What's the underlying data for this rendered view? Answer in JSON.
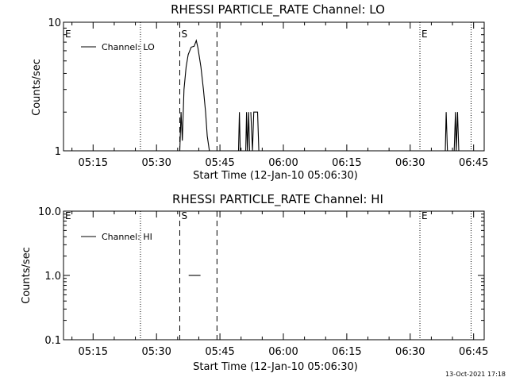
{
  "footer": {
    "timestamp": "13-Oct-2021 17:18"
  },
  "chart_data": [
    {
      "type": "line",
      "title": "RHESSI PARTICLE_RATE Channel: LO",
      "xlabel": "Start Time (12-Jan-10 05:06:30)",
      "ylabel": "Counts/sec",
      "yscale": "log",
      "ylim": [
        1,
        10
      ],
      "yticks": [
        1,
        10
      ],
      "ytick_labels": [
        "1",
        "10"
      ],
      "xlim_min": [
        6.5,
        106
      ],
      "xticks_min": [
        13.5,
        28.5,
        43.5,
        58.5,
        73.5,
        88.5,
        103.5
      ],
      "xtick_labels": [
        "05:15",
        "05:30",
        "05:45",
        "06:00",
        "06:15",
        "06:30",
        "06:45"
      ],
      "legend": {
        "label": "Channel: LO",
        "position": "top-left"
      },
      "markers": [
        {
          "label": "E",
          "x_min": 6.5,
          "style": "text"
        },
        {
          "label": "",
          "x_min": 24.7,
          "style": "dotted"
        },
        {
          "label": "S",
          "x_min": 34.0,
          "style": "dashed"
        },
        {
          "label": "",
          "x_min": 42.8,
          "style": "dashed"
        },
        {
          "label": "E",
          "x_min": 90.8,
          "style": "dotted"
        },
        {
          "label": "",
          "x_min": 102.9,
          "style": "dotted"
        }
      ],
      "series": [
        {
          "name": "Channel: LO",
          "segments": [
            [
              [
                34.0,
                1
              ],
              [
                34.3,
                2
              ],
              [
                34.6,
                1.2
              ],
              [
                35.0,
                3
              ],
              [
                35.5,
                4.5
              ],
              [
                36.0,
                5.6
              ],
              [
                36.7,
                6.4
              ],
              [
                37.4,
                6.5
              ],
              [
                37.9,
                7.2
              ],
              [
                38.3,
                6.3
              ],
              [
                39.0,
                4.5
              ],
              [
                39.6,
                3.0
              ],
              [
                40.1,
                2.0
              ],
              [
                40.5,
                1.3
              ],
              [
                41.0,
                1.0
              ]
            ],
            [
              [
                47.9,
                1
              ],
              [
                48.1,
                2
              ],
              [
                48.3,
                1
              ]
            ],
            [
              [
                49.6,
                1
              ],
              [
                49.8,
                2
              ],
              [
                50.0,
                1
              ],
              [
                50.3,
                2
              ],
              [
                50.5,
                1
              ]
            ],
            [
              [
                50.8,
                2
              ],
              [
                51.2,
                1
              ],
              [
                51.5,
                2
              ],
              [
                52.0,
                2
              ],
              [
                52.4,
                2
              ],
              [
                52.7,
                1
              ]
            ],
            [
              [
                96.8,
                1
              ],
              [
                97.0,
                2
              ],
              [
                97.3,
                1
              ]
            ],
            [
              [
                98.9,
                1
              ],
              [
                99.2,
                2
              ],
              [
                99.4,
                1
              ],
              [
                99.7,
                2
              ],
              [
                100.0,
                1
              ]
            ]
          ]
        }
      ]
    },
    {
      "type": "line",
      "title": "RHESSI PARTICLE_RATE Channel: HI",
      "xlabel": "Start Time (12-Jan-10 05:06:30)",
      "ylabel": "Counts/sec",
      "yscale": "log",
      "ylim": [
        0.1,
        10
      ],
      "yticks": [
        0.1,
        1,
        10
      ],
      "ytick_labels": [
        "0.1",
        "1.0",
        "10.0"
      ],
      "xlim_min": [
        6.5,
        106
      ],
      "xticks_min": [
        13.5,
        28.5,
        43.5,
        58.5,
        73.5,
        88.5,
        103.5
      ],
      "xtick_labels": [
        "05:15",
        "05:30",
        "05:45",
        "06:00",
        "06:15",
        "06:30",
        "06:45"
      ],
      "legend": {
        "label": "Channel: HI",
        "position": "top-left"
      },
      "markers": [
        {
          "label": "E",
          "x_min": 6.5,
          "style": "text"
        },
        {
          "label": "",
          "x_min": 24.7,
          "style": "dotted"
        },
        {
          "label": "S",
          "x_min": 34.0,
          "style": "dashed"
        },
        {
          "label": "",
          "x_min": 42.8,
          "style": "dashed"
        },
        {
          "label": "E",
          "x_min": 90.8,
          "style": "dotted"
        },
        {
          "label": "",
          "x_min": 102.9,
          "style": "dotted"
        }
      ],
      "series": [
        {
          "name": "Channel: HI",
          "segments": [
            [
              [
                36.1,
                1.0
              ],
              [
                38.9,
                1.0
              ]
            ]
          ]
        }
      ]
    }
  ]
}
